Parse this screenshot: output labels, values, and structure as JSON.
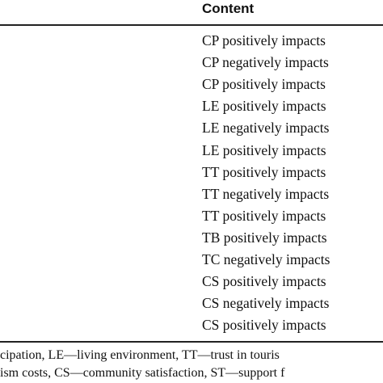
{
  "table": {
    "header": "Content",
    "rows": [
      "CP positively impacts",
      "CP negatively impacts",
      "CP positively impacts",
      "LE positively impacts",
      "LE negatively impacts",
      "LE positively impacts",
      "TT positively impacts",
      "TT negatively impacts",
      "TT positively impacts",
      "TB positively impacts",
      "TC negatively impacts",
      "CS positively impacts",
      "CS negatively impacts",
      "CS positively impacts"
    ]
  },
  "footnote": [
    "cipation, LE—living environment, TT—trust in touris",
    "ism costs, CS—community satisfaction, ST—support f"
  ]
}
